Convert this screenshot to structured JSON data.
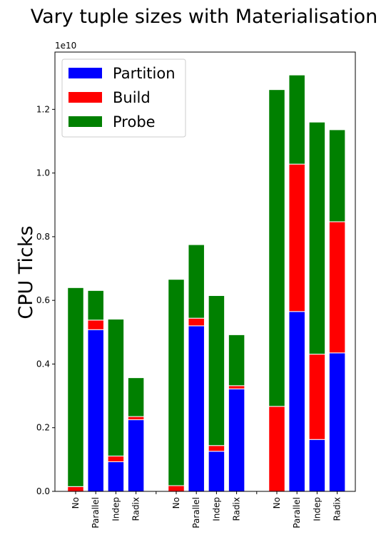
{
  "chart_data": {
    "type": "bar",
    "stacked": true,
    "title": "Vary tuple sizes with Materialisation",
    "ylabel": "CPU Ticks",
    "xlabel": "",
    "y_offset_label": "1e10",
    "ylim": [
      0,
      1.38
    ],
    "yticks": [
      "0.0",
      "0.2",
      "0.4",
      "0.6",
      "0.8",
      "1.0",
      "1.2"
    ],
    "legend_position": "top-left",
    "groups": [
      {
        "name": "",
        "categories": [
          "No",
          "Parallel",
          "Indep",
          "Radix"
        ]
      },
      {
        "name": "",
        "categories": [
          "No",
          "Parallel",
          "Indep",
          "Radix"
        ]
      },
      {
        "name": "",
        "categories": [
          "No",
          "Parallel",
          "Indep",
          "Radix"
        ]
      }
    ],
    "categories": [
      "No",
      "Parallel",
      "Indep",
      "Radix",
      "No",
      "Parallel",
      "Indep",
      "Radix",
      "No",
      "Parallel",
      "Indep",
      "Radix"
    ],
    "series": [
      {
        "name": "Partition",
        "color": "#0000ff",
        "values": [
          0,
          0.508,
          0.093,
          0.225,
          0,
          0.52,
          0.126,
          0.322,
          0,
          0.565,
          0.163,
          0.435
        ]
      },
      {
        "name": "Build",
        "color": "#ff0000",
        "values": [
          0.015,
          0.03,
          0.018,
          0.01,
          0.018,
          0.024,
          0.018,
          0.01,
          0.267,
          0.463,
          0.268,
          0.412
        ]
      },
      {
        "name": "Probe",
        "color": "#008000",
        "values": [
          0.625,
          0.093,
          0.43,
          0.122,
          0.648,
          0.231,
          0.471,
          0.16,
          0.995,
          0.28,
          0.729,
          0.289
        ]
      }
    ],
    "grid": false
  }
}
